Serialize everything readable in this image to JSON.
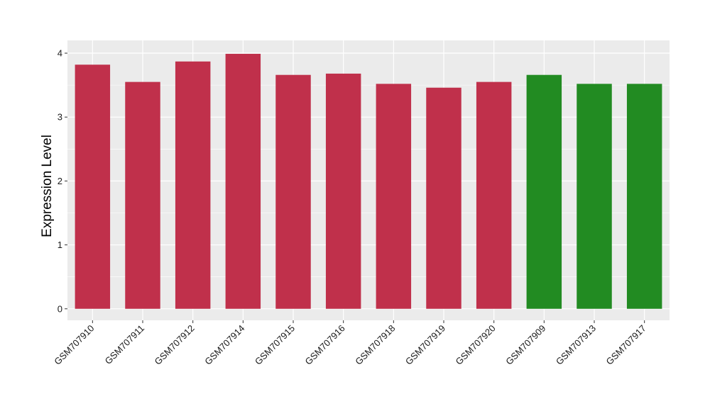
{
  "chart_data": {
    "type": "bar",
    "ylabel": "Expression Level",
    "xlabel": "",
    "ylim": [
      0,
      4
    ],
    "y_ticks": [
      "0",
      "1",
      "2",
      "3",
      "4"
    ],
    "categories": [
      "GSM707910",
      "GSM707911",
      "GSM707912",
      "GSM707914",
      "GSM707915",
      "GSM707916",
      "GSM707918",
      "GSM707919",
      "GSM707920",
      "GSM707909",
      "GSM707913",
      "GSM707917"
    ],
    "values": [
      3.82,
      3.55,
      3.87,
      3.99,
      3.66,
      3.68,
      3.52,
      3.46,
      3.55,
      3.66,
      3.52,
      3.52
    ],
    "bar_colors": [
      "#c0304b",
      "#c0304b",
      "#c0304b",
      "#c0304b",
      "#c0304b",
      "#c0304b",
      "#c0304b",
      "#c0304b",
      "#c0304b",
      "#228b22",
      "#228b22",
      "#228b22"
    ],
    "panel_background": "#ebebeb",
    "grid": true,
    "grid_color": "#ffffff",
    "legend": "none"
  }
}
